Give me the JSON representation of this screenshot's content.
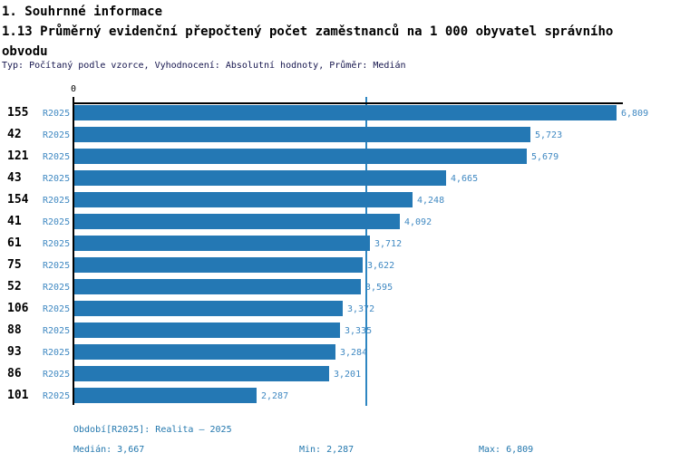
{
  "header": {
    "section_title": "1. Souhrnné informace",
    "indicator_title": "1.13 Průměrný evidenční přepočtený počet zaměstnanců na 1 000 obyvatel správního obvodu",
    "meta": "Typ: Počítaný podle vzorce, Vyhodnocení: Absolutní hodnoty, Průměr: Medián"
  },
  "chart_data": {
    "type": "bar",
    "orientation": "horizontal",
    "title": "1.13 Průměrný evidenční přepočtený počet zaměstnanců na 1 000 obyvatel správního obvodu",
    "categories": [
      "155",
      "42",
      "121",
      "43",
      "154",
      "41",
      "61",
      "75",
      "52",
      "106",
      "88",
      "93",
      "86",
      "101"
    ],
    "series": [
      {
        "name": "R2025",
        "values": [
          6809,
          5723,
          5679,
          4665,
          4248,
          4092,
          3712,
          3622,
          3595,
          3372,
          3335,
          3284,
          3201,
          2287
        ],
        "value_labels": [
          "6,809",
          "5,723",
          "5,679",
          "4,665",
          "4,248",
          "4,092",
          "3,712",
          "3,622",
          "3,595",
          "3,372",
          "3,335",
          "3,284",
          "3,201",
          "2,287"
        ]
      }
    ],
    "axis_zero_label": "0",
    "xlim": [
      0,
      6900
    ],
    "median": 3667,
    "min": 2287,
    "max": 6809,
    "grid": false,
    "legend": false,
    "colors": {
      "bar": "#2478b4",
      "median_line": "#2e86c1",
      "label_text": "#4089c2"
    }
  },
  "footer": {
    "period": "Období[R2025]: Realita – 2025",
    "median": "Medián: 3,667",
    "min": "Min: 2,287",
    "max": "Max: 6,809"
  }
}
